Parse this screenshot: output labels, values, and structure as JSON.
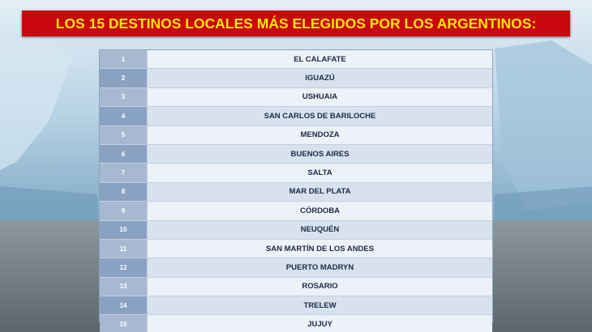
{
  "title": "LOS 15 DESTINOS LOCALES MÁS ELEGIDOS POR LOS ARGENTINOS:",
  "table": {
    "rows": [
      [
        "1",
        "EL CALAFATE"
      ],
      [
        "2",
        "IGUAZÚ"
      ],
      [
        "3",
        "USHUAIA"
      ],
      [
        "4",
        "SAN CARLOS DE BARILOCHE"
      ],
      [
        "5",
        "MENDOZA"
      ],
      [
        "6",
        "BUENOS AIRES"
      ],
      [
        "7",
        "SALTA"
      ],
      [
        "8",
        "MAR DEL PLATA"
      ],
      [
        "9",
        "CÓRDOBA"
      ],
      [
        "10",
        "NEUQUÉN"
      ],
      [
        "11",
        "SAN MARTÍN DE LOS ANDES"
      ],
      [
        "12",
        "PUERTO MADRYN"
      ],
      [
        "13",
        "ROSARIO"
      ],
      [
        "14",
        "TRELEW"
      ],
      [
        "15",
        "JUJUY"
      ]
    ]
  }
}
